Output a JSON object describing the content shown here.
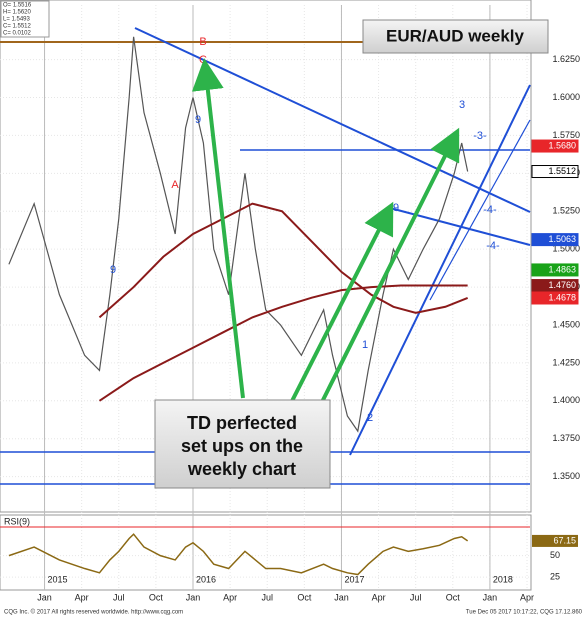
{
  "chart_data": {
    "type": "line",
    "title": "EUR/AUD weekly",
    "callout_lines": [
      "TD perfected",
      "set ups on the",
      "weekly chart"
    ],
    "info_box": [
      "O= 1.5516",
      "H= 1.5620",
      "L= 1.5493",
      "C= 1.5512",
      "C= 0.0102"
    ],
    "footer_left": "CQG Inc. © 2017 All rights reserved worldwide. http://www.cqg.com",
    "footer_right": "Tue Dec 05 2017 10:17:22, CQG 17.12.860",
    "td_labels": [
      "B",
      "9",
      "A",
      "9",
      "C",
      "3",
      "9",
      "1",
      "2",
      "-4-",
      "-4-",
      "-3-"
    ],
    "xlim": [
      2014.7,
      2018.27
    ],
    "xticks": [
      {
        "value": 2015.0,
        "label": "Jan"
      },
      {
        "value": 2015.25,
        "label": "Apr"
      },
      {
        "value": 2015.5,
        "label": "Jul"
      },
      {
        "value": 2015.75,
        "label": "Oct"
      },
      {
        "value": 2016.0,
        "label": "Jan"
      },
      {
        "value": 2016.25,
        "label": "Apr"
      },
      {
        "value": 2016.5,
        "label": "Jul"
      },
      {
        "value": 2016.75,
        "label": "Oct"
      },
      {
        "value": 2017.0,
        "label": "Jan"
      },
      {
        "value": 2017.25,
        "label": "Apr"
      },
      {
        "value": 2017.5,
        "label": "Jul"
      },
      {
        "value": 2017.75,
        "label": "Oct"
      },
      {
        "value": 2018.0,
        "label": "Jan"
      },
      {
        "value": 2018.25,
        "label": "Apr"
      }
    ],
    "year_labels": [
      {
        "value": 2015.0,
        "label": "2015"
      },
      {
        "value": 2016.0,
        "label": "2016"
      },
      {
        "value": 2017.0,
        "label": "2017"
      },
      {
        "value": 2018.0,
        "label": "2018"
      }
    ],
    "ylim": [
      1.328,
      1.661
    ],
    "yticks": [
      {
        "value": 1.35,
        "label": "1.3500"
      },
      {
        "value": 1.375,
        "label": "1.3750"
      },
      {
        "value": 1.4,
        "label": "1.4000"
      },
      {
        "value": 1.425,
        "label": "1.4250"
      },
      {
        "value": 1.45,
        "label": "1.4500"
      },
      {
        "value": 1.475,
        "label": "1.4750"
      },
      {
        "value": 1.5,
        "label": "1.5000"
      },
      {
        "value": 1.525,
        "label": "1.5250"
      },
      {
        "value": 1.55,
        "label": "1.5500"
      },
      {
        "value": 1.575,
        "label": "1.5750"
      },
      {
        "value": 1.6,
        "label": "1.6000"
      },
      {
        "value": 1.625,
        "label": "1.6250"
      }
    ],
    "price_labels": [
      {
        "value": 1.568,
        "label": "1.5680",
        "color": "#e8262a"
      },
      {
        "value": 1.5512,
        "label": "1.5512",
        "color": "#000000"
      },
      {
        "value": 1.5063,
        "label": "1.5063",
        "color": "#1f4fd6"
      },
      {
        "value": 1.4863,
        "label": "1.4863",
        "color": "#19a319"
      },
      {
        "value": 1.476,
        "label": "1.4760",
        "color": "#8b1a1a"
      },
      {
        "value": 1.4678,
        "label": "1.4678",
        "color": "#e8262a"
      }
    ],
    "series": [
      {
        "color": "#555555",
        "x": [
          2014.76,
          2014.93,
          2015.1,
          2015.27,
          2015.37,
          2015.44,
          2015.5,
          2015.57,
          2015.6,
          2015.67,
          2015.78,
          2015.88,
          2015.95,
          2016.0,
          2016.07,
          2016.14,
          2016.24,
          2016.35,
          2016.42,
          2016.49,
          2016.59,
          2016.73,
          2016.88,
          2016.94,
          2017.04,
          2017.11,
          2017.18,
          2017.28,
          2017.35,
          2017.45,
          2017.55,
          2017.66,
          2017.76,
          2017.81,
          2017.85
        ],
        "values": [
          1.49,
          1.53,
          1.47,
          1.43,
          1.42,
          1.47,
          1.52,
          1.6,
          1.64,
          1.59,
          1.55,
          1.51,
          1.58,
          1.6,
          1.57,
          1.5,
          1.47,
          1.55,
          1.5,
          1.46,
          1.45,
          1.43,
          1.46,
          1.43,
          1.39,
          1.38,
          1.42,
          1.47,
          1.5,
          1.48,
          1.5,
          1.52,
          1.55,
          1.57,
          1.5512
        ]
      },
      {
        "color": "#8b1a1a",
        "x": [
          2015.37,
          2015.6,
          2015.8,
          2016.0,
          2016.2,
          2016.4,
          2016.6,
          2016.8,
          2017.0,
          2017.2,
          2017.35,
          2017.5,
          2017.7,
          2017.85
        ],
        "values": [
          1.455,
          1.475,
          1.495,
          1.51,
          1.52,
          1.53,
          1.525,
          1.505,
          1.485,
          1.47,
          1.462,
          1.458,
          1.462,
          1.4678
        ]
      },
      {
        "color": "#8b1a1a",
        "x": [
          2015.37,
          2015.6,
          2015.8,
          2016.0,
          2016.2,
          2016.4,
          2016.6,
          2016.8,
          2017.0,
          2017.2,
          2017.4,
          2017.6,
          2017.85
        ],
        "values": [
          1.4,
          1.415,
          1.425,
          1.435,
          1.445,
          1.455,
          1.462,
          1.468,
          1.473,
          1.475,
          1.476,
          1.476,
          1.476
        ]
      }
    ],
    "rsi": {
      "label": "RSI(9)",
      "color": "#8b6914",
      "ylim": [
        10,
        95
      ],
      "yticks": [
        25,
        50
      ],
      "x": [
        2014.76,
        2014.93,
        2015.1,
        2015.27,
        2015.37,
        2015.44,
        2015.5,
        2015.57,
        2015.6,
        2015.67,
        2015.78,
        2015.88,
        2015.95,
        2016.0,
        2016.07,
        2016.14,
        2016.24,
        2016.35,
        2016.42,
        2016.49,
        2016.59,
        2016.73,
        2016.88,
        2016.94,
        2017.04,
        2017.11,
        2017.18,
        2017.28,
        2017.35,
        2017.45,
        2017.55,
        2017.66,
        2017.76,
        2017.81,
        2017.85
      ],
      "values": [
        50,
        60,
        45,
        35,
        30,
        45,
        55,
        70,
        75,
        60,
        50,
        45,
        60,
        65,
        55,
        40,
        35,
        55,
        45,
        35,
        35,
        30,
        40,
        35,
        30,
        28,
        40,
        55,
        60,
        55,
        58,
        62,
        70,
        72,
        67.15
      ]
    }
  }
}
